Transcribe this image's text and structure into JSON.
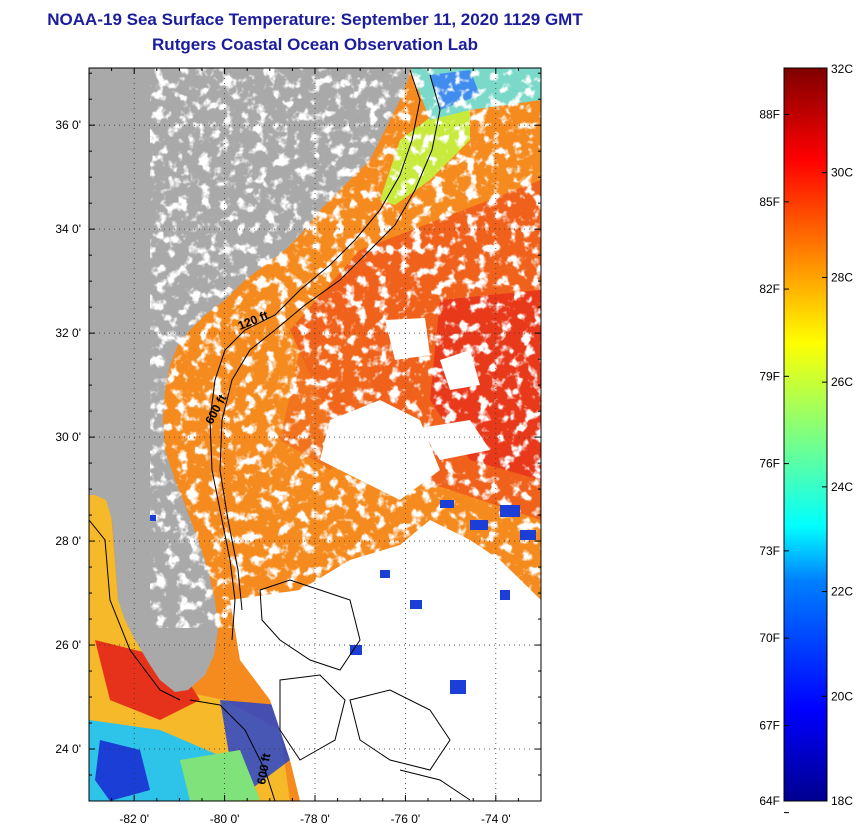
{
  "title": {
    "line1": "NOAA-19 Sea Surface Temperature:  September 11, 2020 1129 GMT",
    "line2": "Rutgers Coastal Ocean Observation Lab"
  },
  "map": {
    "lat_range": [
      23.0,
      37.1
    ],
    "lon_range": [
      -83.0,
      -73.0
    ],
    "lat_labels": [
      "24 0'",
      "26 0'",
      "28 0'",
      "30 0'",
      "32 0'",
      "34 0'",
      "36 0'"
    ],
    "lat_values": [
      24,
      26,
      28,
      30,
      32,
      34,
      36
    ],
    "lon_labels": [
      "-82 0'",
      "-80 0'",
      "-78 0'",
      "-76 0'",
      "-74 0'"
    ],
    "lon_values": [
      -82,
      -80,
      -78,
      -76,
      -74
    ],
    "contour_labels": [
      "120 ft",
      "600 ft",
      "600 ft"
    ],
    "colors": {
      "land": "#a9a9a9",
      "cloud": "#ffffff",
      "sst_main": "#f58b1e",
      "sst_warm": "#ef4a1a",
      "sst_hot": "#e6231a",
      "shelf_green": "#a8e04a",
      "cool_blue": "#1b3fd6"
    }
  },
  "colorbar": {
    "celsius_labels": [
      "32C",
      "30C",
      "28C",
      "26C",
      "24C",
      "22C",
      "20C",
      "18C"
    ],
    "celsius_values": [
      32,
      30,
      28,
      26,
      24,
      22,
      20,
      18
    ],
    "fahrenheit_labels": [
      "88F",
      "85F",
      "82F",
      "79F",
      "76F",
      "73F",
      "70F",
      "67F",
      "64F"
    ],
    "fahrenheit_values": [
      88,
      85,
      82,
      79,
      76,
      73,
      70,
      67,
      64
    ]
  }
}
